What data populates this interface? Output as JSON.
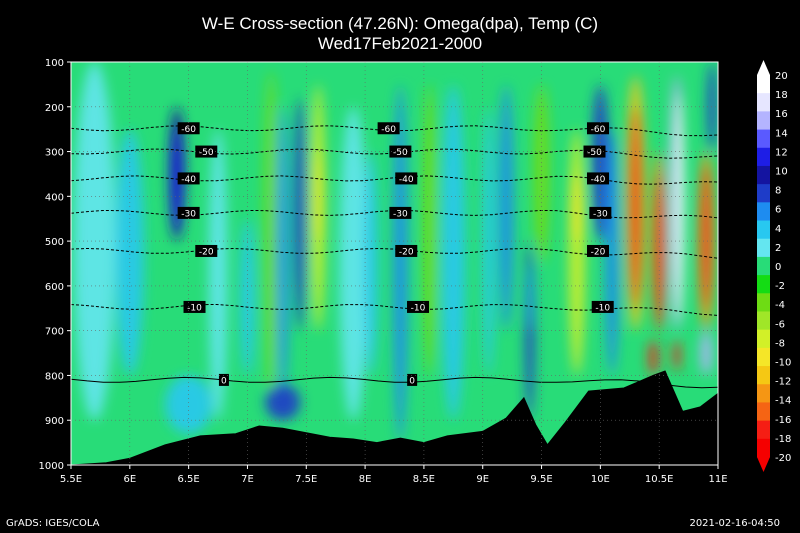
{
  "chart_data": {
    "type": "heatmap",
    "title": "W-E Cross-section (47.26N): Omega(dpa), Temp (C)",
    "subtitle": "Wed17Feb2021-2000",
    "x_ticks": [
      "5.5E",
      "6E",
      "6.5E",
      "7E",
      "7.5E",
      "8E",
      "8.5E",
      "9E",
      "9.5E",
      "10E",
      "10.5E",
      "11E"
    ],
    "y_ticks": [
      "100",
      "200",
      "300",
      "400",
      "500",
      "600",
      "700",
      "800",
      "900",
      "1000"
    ],
    "x_range": [
      5.5,
      11
    ],
    "y_range": [
      100,
      1000
    ],
    "y_inverted": true,
    "grid": true,
    "colorbar": {
      "labels": [
        "20",
        "18",
        "16",
        "14",
        "12",
        "10",
        "8",
        "6",
        "4",
        "2",
        "0",
        "-2",
        "-4",
        "-6",
        "-8",
        "-10",
        "-12",
        "-14",
        "-16",
        "-18",
        "-20"
      ],
      "colors": [
        "#ffffff",
        "#e6e6ff",
        "#b4b4ff",
        "#5a5aff",
        "#1e1ee6",
        "#1414a0",
        "#1e3cc8",
        "#1e8cf0",
        "#28c8f0",
        "#64e6f0",
        "#28dc78",
        "#14dc14",
        "#6edc14",
        "#a0e628",
        "#d2f028",
        "#f5e628",
        "#f5c814",
        "#f59614",
        "#f56414",
        "#f51e14",
        "#f50000"
      ]
    },
    "temperature_contours": [
      {
        "label": "-60",
        "pressure": 248,
        "label_x": [
          6.5,
          8.2,
          9.98
        ]
      },
      {
        "label": "-50",
        "pressure": 300,
        "label_x": [
          6.65,
          8.3,
          9.95
        ]
      },
      {
        "label": "-40",
        "pressure": 360,
        "label_x": [
          6.5,
          8.35,
          9.98
        ]
      },
      {
        "label": "-30",
        "pressure": 437,
        "label_x": [
          6.5,
          8.3,
          10.0
        ]
      },
      {
        "label": "-20",
        "pressure": 522,
        "label_x": [
          6.65,
          8.35,
          9.98
        ]
      },
      {
        "label": "-10",
        "pressure": 647,
        "label_x": [
          6.55,
          8.45,
          10.02
        ]
      },
      {
        "label": "0",
        "pressure": 810,
        "label_x": [
          6.8,
          8.4
        ]
      }
    ],
    "topography": [
      {
        "x": 5.5,
        "p": 1000
      },
      {
        "x": 5.8,
        "p": 995
      },
      {
        "x": 6.0,
        "p": 985
      },
      {
        "x": 6.3,
        "p": 955
      },
      {
        "x": 6.6,
        "p": 935
      },
      {
        "x": 6.9,
        "p": 930
      },
      {
        "x": 7.1,
        "p": 913
      },
      {
        "x": 7.3,
        "p": 918
      },
      {
        "x": 7.5,
        "p": 928
      },
      {
        "x": 7.7,
        "p": 938
      },
      {
        "x": 7.9,
        "p": 942
      },
      {
        "x": 8.1,
        "p": 950
      },
      {
        "x": 8.3,
        "p": 940
      },
      {
        "x": 8.5,
        "p": 950
      },
      {
        "x": 8.7,
        "p": 935
      },
      {
        "x": 9.0,
        "p": 925
      },
      {
        "x": 9.2,
        "p": 895
      },
      {
        "x": 9.35,
        "p": 850
      },
      {
        "x": 9.45,
        "p": 910
      },
      {
        "x": 9.55,
        "p": 955
      },
      {
        "x": 9.7,
        "p": 905
      },
      {
        "x": 9.9,
        "p": 835
      },
      {
        "x": 10.2,
        "p": 828
      },
      {
        "x": 10.45,
        "p": 800
      },
      {
        "x": 10.55,
        "p": 790
      },
      {
        "x": 10.7,
        "p": 880
      },
      {
        "x": 10.85,
        "p": 870
      },
      {
        "x": 11.0,
        "p": 840
      }
    ]
  },
  "footer": {
    "left": "GrADS: IGES/COLA",
    "right": "2021-02-16-04:50"
  }
}
